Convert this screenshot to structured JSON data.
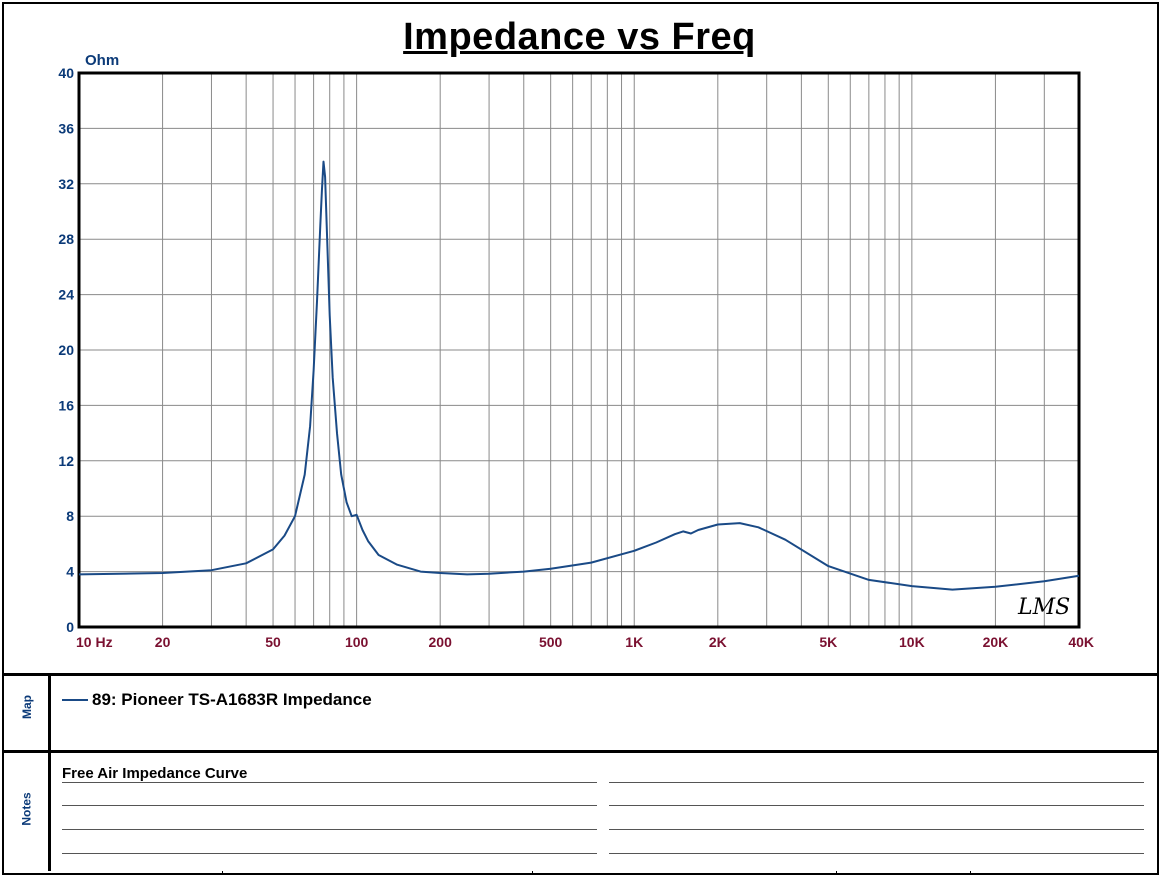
{
  "chart_data": {
    "type": "line",
    "title": "Impedance vs Freq",
    "ylabel": "Ohm",
    "x_scale": "log",
    "xlim": [
      10,
      40000
    ],
    "ylim": [
      0,
      40
    ],
    "grid": true,
    "y_ticks": [
      {
        "value": 0,
        "label": "0"
      },
      {
        "value": 4,
        "label": "4"
      },
      {
        "value": 8,
        "label": "8"
      },
      {
        "value": 12,
        "label": "12"
      },
      {
        "value": 16,
        "label": "16"
      },
      {
        "value": 20,
        "label": "20"
      },
      {
        "value": 24,
        "label": "24"
      },
      {
        "value": 28,
        "label": "28"
      },
      {
        "value": 32,
        "label": "32"
      },
      {
        "value": 36,
        "label": "36"
      },
      {
        "value": 40,
        "label": "40"
      }
    ],
    "x_ticks": [
      {
        "value": 10,
        "label": "10 Hz"
      },
      {
        "value": 20,
        "label": "20"
      },
      {
        "value": 50,
        "label": "50"
      },
      {
        "value": 100,
        "label": "100"
      },
      {
        "value": 200,
        "label": "200"
      },
      {
        "value": 500,
        "label": "500"
      },
      {
        "value": 1000,
        "label": "1K"
      },
      {
        "value": 2000,
        "label": "2K"
      },
      {
        "value": 5000,
        "label": "5K"
      },
      {
        "value": 10000,
        "label": "10K"
      },
      {
        "value": 20000,
        "label": "20K"
      },
      {
        "value": 40000,
        "label": "40K"
      }
    ],
    "series": [
      {
        "name": "89: Pioneer TS-A1683R Impedance",
        "color": "#1a4a86",
        "x": [
          10,
          20,
          30,
          40,
          50,
          55,
          60,
          65,
          68,
          70,
          72,
          74,
          75,
          76,
          77,
          78,
          80,
          82,
          85,
          88,
          92,
          96,
          100,
          105,
          110,
          120,
          140,
          170,
          200,
          250,
          300,
          400,
          500,
          700,
          1000,
          1200,
          1400,
          1500,
          1600,
          1700,
          2000,
          2400,
          2800,
          3500,
          5000,
          7000,
          10000,
          14000,
          20000,
          30000,
          40000
        ],
        "y": [
          3.8,
          3.9,
          4.1,
          4.6,
          5.6,
          6.6,
          8.0,
          11.0,
          14.5,
          18.5,
          23.5,
          29.0,
          31.5,
          33.6,
          32.5,
          29.0,
          22.5,
          18.0,
          14.0,
          11.0,
          9.0,
          8.0,
          8.1,
          7.0,
          6.2,
          5.2,
          4.5,
          4.0,
          3.9,
          3.8,
          3.85,
          4.0,
          4.2,
          4.65,
          5.5,
          6.1,
          6.7,
          6.9,
          6.75,
          7.0,
          7.4,
          7.5,
          7.2,
          6.3,
          4.4,
          3.4,
          2.95,
          2.7,
          2.9,
          3.3,
          3.7
        ]
      }
    ]
  },
  "watermark": "LMS",
  "map_panel": {
    "label": "Map",
    "legend_text": "89: Pioneer TS-A1683R Impedance",
    "legend_color": "#1a4a86"
  },
  "notes_panel": {
    "label": "Notes",
    "text": "Free Air Impedance Curve"
  }
}
